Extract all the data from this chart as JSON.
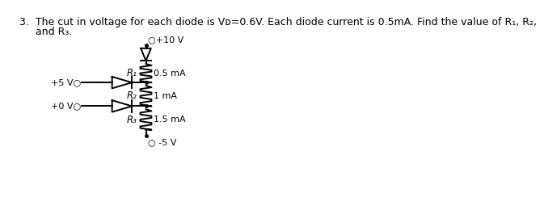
{
  "title_line1": "3.  The cut in voltage for each diode is Vᴅ=0.6V. Each diode current is 0.5mA. Find the value of R₁, R₂,",
  "title_line2": "     and R₃.",
  "bg_color": "#ffffff",
  "text_color": "#000000",
  "top_voltage": "○+10 V",
  "bot_voltage": "○ -5 V",
  "left_top_voltage": "+5 V○",
  "left_bot_voltage": "+0 V○",
  "R1_label": "R₁",
  "R1_current": "0.5 mA",
  "R2_label": "R₂",
  "R2_current": "1 mA",
  "R3_label": "R₃",
  "R3_current": "1.5 mA"
}
